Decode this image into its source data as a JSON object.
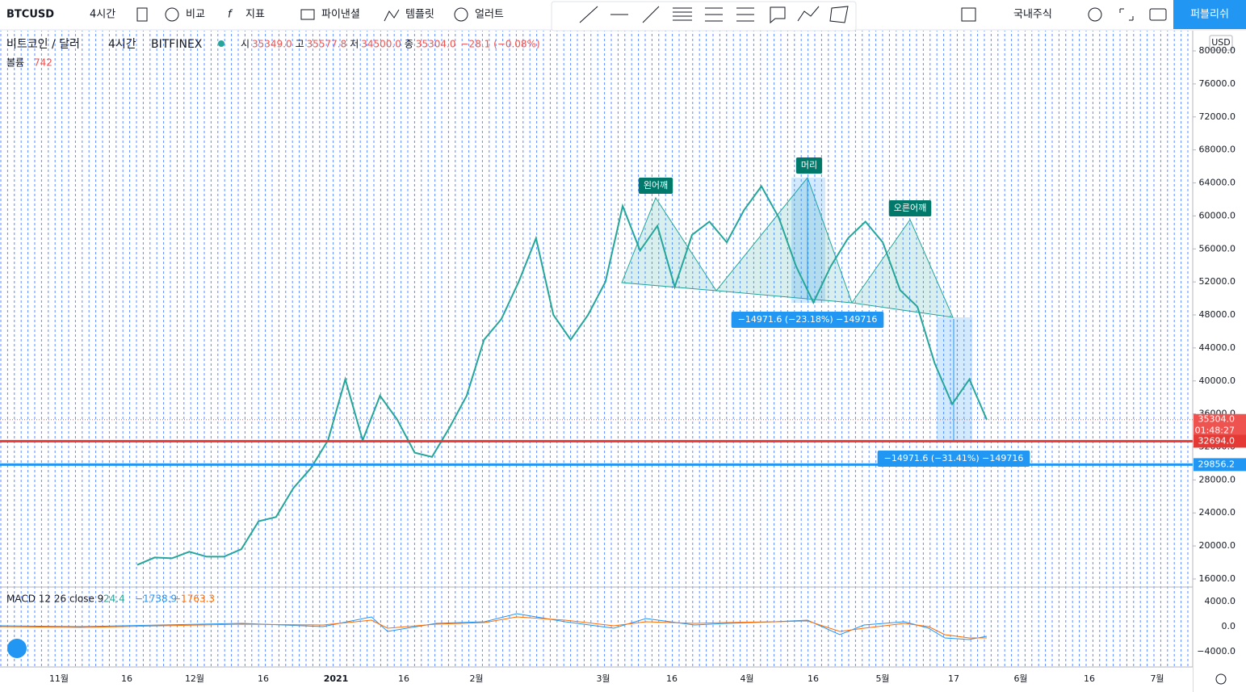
{
  "toolbar": {
    "symbol": "BTCUSD",
    "interval": "4시간",
    "compare": "비교",
    "indicators": "지표",
    "financials": "파이낸셜",
    "templates": "템플릿",
    "alert": "얼러트",
    "market": "국내주식",
    "publish": "퍼블리쉬"
  },
  "legend": {
    "title": "비트코인 / 달러",
    "interval": "4시간",
    "exchange": "BITFINEX",
    "ohlc": [
      {
        "label": "시",
        "value": "35349.0"
      },
      {
        "label": "고",
        "value": "35577.8"
      },
      {
        "label": "저",
        "value": "34500.0"
      },
      {
        "label": "종",
        "value": "35304.0"
      }
    ],
    "change": "−28.1 (−0.08%)",
    "volume_label": "볼륨",
    "volume_value": "742"
  },
  "currency": "USD",
  "macd": {
    "label": "MACD 12 26 close 9",
    "values": [
      "24.4",
      "−1738.9",
      "−1763.3"
    ],
    "ticks": [
      "4000.0",
      "0.0",
      "−4000.0"
    ]
  },
  "time_axis": [
    "11월",
    "16",
    "12월",
    "16",
    "2021",
    "16",
    "2월",
    "3월",
    "16",
    "4월",
    "16",
    "5월",
    "17",
    "6월",
    "16",
    "7월"
  ],
  "chart_data": {
    "type": "line",
    "color": "#26a69a",
    "values": [
      17700,
      18600,
      18500,
      19300,
      18700,
      18700,
      19600,
      23000,
      23500,
      27000,
      29400,
      32800,
      40200,
      32800,
      38200,
      35300,
      31300,
      30800,
      34300,
      38200,
      45000,
      47500,
      52000,
      57300,
      48000,
      45000,
      48000,
      52000,
      61200,
      55800,
      58800,
      51400,
      57700,
      59300,
      56800,
      60700,
      63600,
      59800,
      53900,
      49500,
      53900,
      57300,
      59300,
      56800,
      51000,
      49000,
      42100,
      37200,
      40200,
      35300
    ],
    "ylim": [
      15000,
      82000
    ],
    "yticks": [
      {
        "value": 16000,
        "label": "16000.0"
      },
      {
        "value": 20000,
        "label": "20000.0"
      },
      {
        "value": 24000,
        "label": "24000.0"
      },
      {
        "value": 28000,
        "label": "28000.0"
      },
      {
        "value": 32000,
        "label": "32000.0"
      },
      {
        "value": 36000,
        "label": "36000.0"
      },
      {
        "value": 40000,
        "label": "40000.0"
      },
      {
        "value": 44000,
        "label": "44000.0"
      },
      {
        "value": 48000,
        "label": "48000.0"
      },
      {
        "value": 52000,
        "label": "52000.0"
      },
      {
        "value": 56000,
        "label": "56000.0"
      },
      {
        "value": 60000,
        "label": "60000.0"
      },
      {
        "value": 64000,
        "label": "64000.0"
      },
      {
        "value": 68000,
        "label": "68000.0"
      },
      {
        "value": 72000,
        "label": "72000.0"
      },
      {
        "value": 76000,
        "label": "76000.0"
      },
      {
        "value": 80000,
        "label": "80000.0"
      }
    ],
    "last_price": {
      "value": 35304.0,
      "label": "35304.0",
      "countdown": "01:48:27"
    },
    "hlines": [
      {
        "value": 32694.0,
        "label": "32694.0",
        "color": "#e53935"
      },
      {
        "value": 29856.2,
        "label": "29856.2",
        "color": "#2196f3"
      }
    ],
    "annotations": [
      "왼어깨",
      "머리",
      "오른어깨"
    ],
    "measures": [
      "−14971.6 (−23.18%) −149716",
      "−14971.6 (−31.41%) −149716"
    ]
  }
}
